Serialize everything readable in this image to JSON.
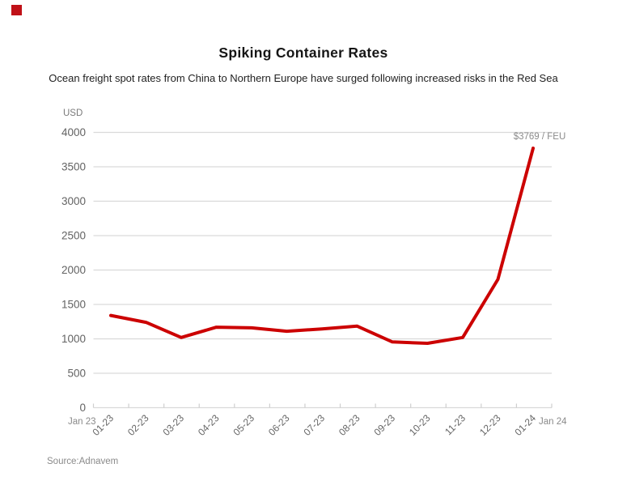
{
  "page": {
    "title": "Spiking Container Rates",
    "subtitle": "Ocean freight spot rates from China to Northern Europe have surged following increased risks in the Red Sea",
    "source": "Source:Adnavem",
    "brand_color": "#c01118"
  },
  "chart_data": {
    "type": "line",
    "title": "Spiking Container Rates",
    "subtitle": "Ocean freight spot rates from China to Northern Europe have surged following increased risks in the Red Sea",
    "unit_label": "USD",
    "categories": [
      "01-23",
      "02-23",
      "03-23",
      "04-23",
      "05-23",
      "06-23",
      "07-23",
      "08-23",
      "09-23",
      "10-23",
      "11-23",
      "12-23",
      "01-24"
    ],
    "values": [
      1340,
      1240,
      1020,
      1170,
      1160,
      1110,
      1145,
      1185,
      955,
      935,
      1020,
      1865,
      3769
    ],
    "yticks": [
      0,
      500,
      1000,
      1500,
      2000,
      2500,
      3000,
      3500,
      4000
    ],
    "ylim": [
      0,
      4000
    ],
    "x_edge_labels": [
      "Jan 23",
      "Jan 24"
    ],
    "annotation": "$3769 / FEU",
    "grid": true,
    "legend": "none",
    "line_color": "#cc0000",
    "grid_color": "#d9d9d9",
    "tick_label_color": "#636363",
    "muted_label_color": "#8a8a8a"
  }
}
